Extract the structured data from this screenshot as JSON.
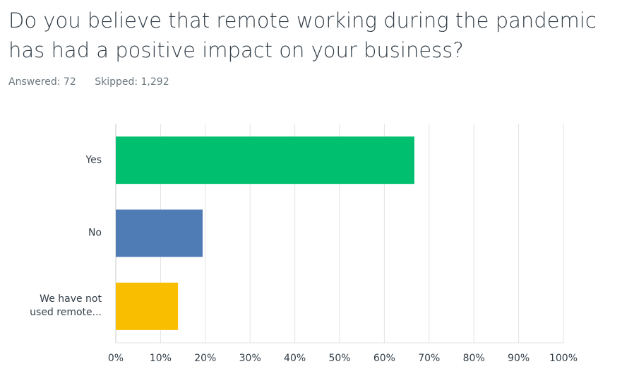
{
  "chart_data": {
    "type": "hbar",
    "title": "Do you believe that remote working during the pandemic has had a positive impact on your business?",
    "answered": "Answered: 72",
    "skipped": "Skipped: 1,292",
    "categories": [
      "Yes",
      "No",
      "We have not used remote..."
    ],
    "values": [
      66.7,
      19.4,
      13.9
    ],
    "colors": [
      "#00bf6f",
      "#507cb6",
      "#f9be00"
    ],
    "xlim": [
      0,
      100
    ],
    "xticks": [
      {
        "value": 0,
        "label": "0%"
      },
      {
        "value": 10,
        "label": "10%"
      },
      {
        "value": 20,
        "label": "20%"
      },
      {
        "value": 30,
        "label": "30%"
      },
      {
        "value": 40,
        "label": "40%"
      },
      {
        "value": 50,
        "label": "50%"
      },
      {
        "value": 60,
        "label": "60%"
      },
      {
        "value": 70,
        "label": "70%"
      },
      {
        "value": 80,
        "label": "80%"
      },
      {
        "value": 90,
        "label": "90%"
      },
      {
        "value": 100,
        "label": "100%"
      }
    ],
    "grid": true
  }
}
